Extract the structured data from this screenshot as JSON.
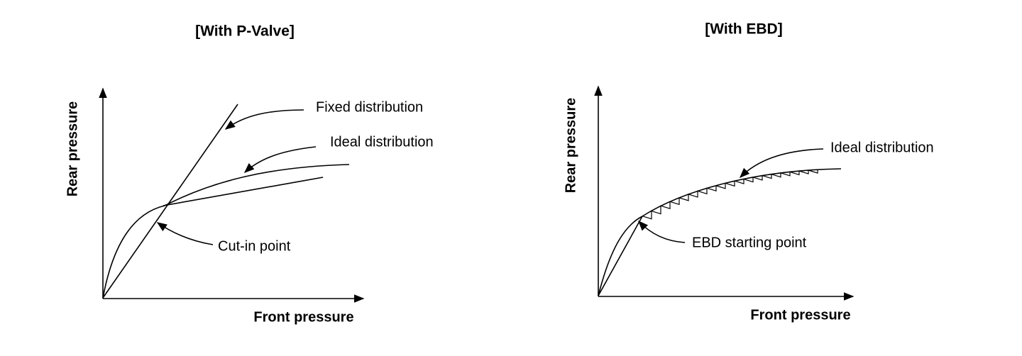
{
  "panels": [
    {
      "title": "[With  P-Valve]",
      "y_label": "Rear  pressure",
      "x_label": "Front  pressure",
      "annotations": [
        "Fixed distribution",
        "Ideal distribution",
        "Cut-in point"
      ]
    },
    {
      "title": "[With  EBD]",
      "y_label": "Rear  pressure",
      "x_label": "Front  pressure",
      "annotations": [
        "Ideal distribution",
        "EBD starting point"
      ]
    }
  ]
}
